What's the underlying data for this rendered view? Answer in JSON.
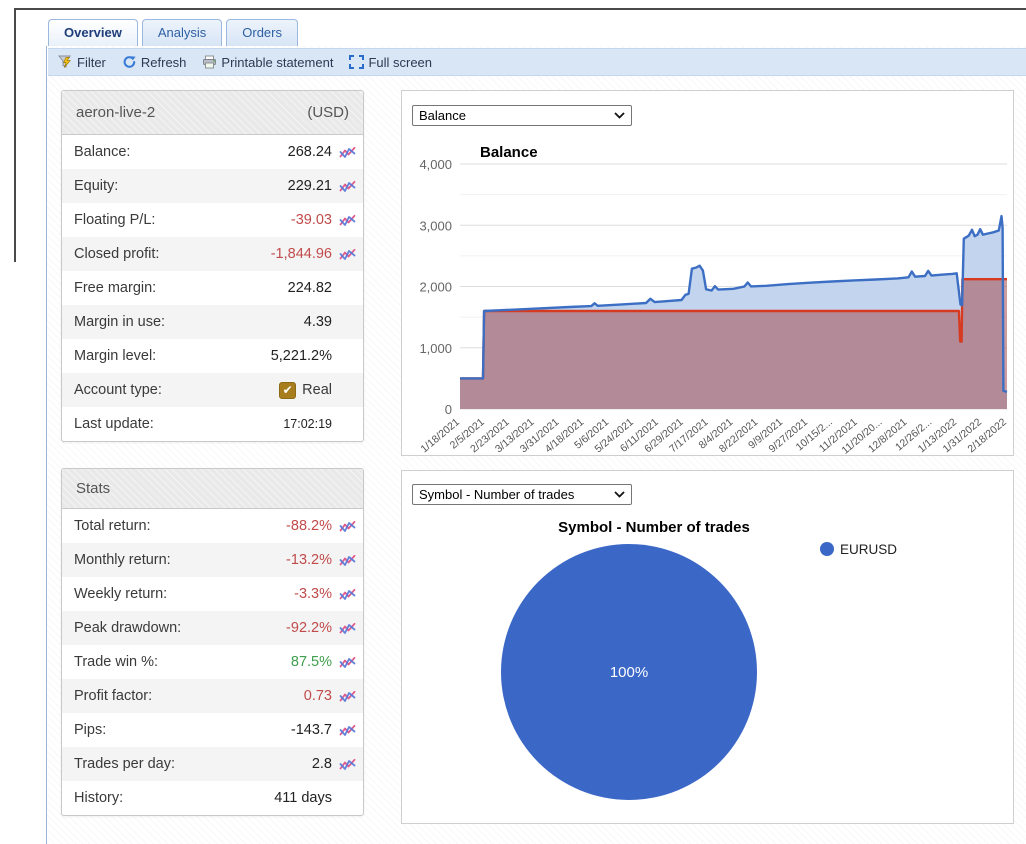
{
  "tabs": [
    {
      "label": "Overview",
      "active": true
    },
    {
      "label": "Analysis",
      "active": false
    },
    {
      "label": "Orders",
      "active": false
    }
  ],
  "toolbar": {
    "items": [
      {
        "label": "Filter",
        "icon": "filter-icon"
      },
      {
        "label": "Refresh",
        "icon": "refresh-icon"
      },
      {
        "label": "Printable statement",
        "icon": "printer-icon"
      },
      {
        "label": "Full screen",
        "icon": "fullscreen-icon"
      }
    ]
  },
  "account_panel": {
    "title": "aeron-live-2",
    "currency": "(USD)",
    "rows": [
      {
        "label": "Balance:",
        "value": "268.24",
        "tone": "neutral",
        "chart_icon": true
      },
      {
        "label": "Equity:",
        "value": "229.21",
        "tone": "neutral",
        "chart_icon": true
      },
      {
        "label": "Floating P/L:",
        "value": "-39.03",
        "tone": "negative",
        "chart_icon": true
      },
      {
        "label": "Closed profit:",
        "value": "-1,844.96",
        "tone": "negative",
        "chart_icon": true
      },
      {
        "label": "Free margin:",
        "value": "224.82",
        "tone": "neutral",
        "chart_icon": false
      },
      {
        "label": "Margin in use:",
        "value": "4.39",
        "tone": "neutral",
        "chart_icon": false
      },
      {
        "label": "Margin level:",
        "value": "5,221.2%",
        "tone": "neutral",
        "chart_icon": false
      },
      {
        "label": "Account type:",
        "value": "Real",
        "tone": "neutral",
        "chart_icon": false,
        "checkbox": true,
        "checkbox_color": "#A87D1E",
        "check_glyph": "✔"
      },
      {
        "label": "Last update:",
        "value": "17:02:19",
        "tone": "neutral",
        "chart_icon": false
      }
    ]
  },
  "stats_panel": {
    "title": "Stats",
    "rows": [
      {
        "label": "Total return:",
        "value": "-88.2%",
        "tone": "negative",
        "chart_icon": true
      },
      {
        "label": "Monthly return:",
        "value": "-13.2%",
        "tone": "negative",
        "chart_icon": true
      },
      {
        "label": "Weekly return:",
        "value": "-3.3%",
        "tone": "negative",
        "chart_icon": true
      },
      {
        "label": "Peak drawdown:",
        "value": "-92.2%",
        "tone": "negative",
        "chart_icon": true
      },
      {
        "label": "Trade win %:",
        "value": "87.5%",
        "tone": "positive",
        "chart_icon": true
      },
      {
        "label": "Profit factor:",
        "value": "0.73",
        "tone": "negative",
        "chart_icon": true
      },
      {
        "label": "Pips:",
        "value": "-143.7",
        "tone": "neutral",
        "chart_icon": true
      },
      {
        "label": "Trades per day:",
        "value": "2.8",
        "tone": "neutral",
        "chart_icon": true
      },
      {
        "label": "History:",
        "value": "411 days",
        "tone": "neutral",
        "chart_icon": false
      }
    ]
  },
  "balance_chart": {
    "select_value": "Balance",
    "chart_data": {
      "type": "area",
      "title": "Balance",
      "x_unit": "fraction_of_date_range",
      "x_labels": [
        "1/18/2021",
        "2/5/2021",
        "2/23/2021",
        "3/13/2021",
        "3/31/2021",
        "4/18/2021",
        "5/6/2021",
        "5/24/2021",
        "6/11/2021",
        "6/29/2021",
        "7/17/2021",
        "8/4/2021",
        "8/22/2021",
        "9/9/2021",
        "9/27/2021",
        "10/15/2...",
        "11/2/2021",
        "11/20/20...",
        "12/8/2021",
        "12/26/2...",
        "1/13/2022",
        "1/31/2022",
        "2/18/2022"
      ],
      "ylim": [
        0,
        4000
      ],
      "ytick_step": 500,
      "ylabel_ticks": [
        "0",
        "1,000",
        "2,000",
        "3,000",
        "4,000"
      ],
      "grid": true,
      "series": [
        {
          "name": "Balance",
          "color": "#3C6FC4",
          "fill": "#C3D5EE",
          "points": [
            [
              0.0,
              500
            ],
            [
              0.042,
              500
            ],
            [
              0.044,
              1600
            ],
            [
              0.08,
              1615
            ],
            [
              0.14,
              1640
            ],
            [
              0.2,
              1665
            ],
            [
              0.24,
              1680
            ],
            [
              0.246,
              1725
            ],
            [
              0.252,
              1685
            ],
            [
              0.3,
              1710
            ],
            [
              0.34,
              1730
            ],
            [
              0.348,
              1800
            ],
            [
              0.356,
              1745
            ],
            [
              0.38,
              1762
            ],
            [
              0.405,
              1780
            ],
            [
              0.412,
              1865
            ],
            [
              0.418,
              1880
            ],
            [
              0.424,
              2290
            ],
            [
              0.432,
              2310
            ],
            [
              0.438,
              2340
            ],
            [
              0.444,
              2260
            ],
            [
              0.45,
              1955
            ],
            [
              0.46,
              1935
            ],
            [
              0.466,
              2005
            ],
            [
              0.472,
              1950
            ],
            [
              0.5,
              1962
            ],
            [
              0.52,
              2000
            ],
            [
              0.526,
              2065
            ],
            [
              0.532,
              2002
            ],
            [
              0.56,
              2012
            ],
            [
              0.6,
              2040
            ],
            [
              0.64,
              2062
            ],
            [
              0.68,
              2082
            ],
            [
              0.72,
              2100
            ],
            [
              0.76,
              2115
            ],
            [
              0.8,
              2132
            ],
            [
              0.82,
              2150
            ],
            [
              0.826,
              2245
            ],
            [
              0.832,
              2160
            ],
            [
              0.85,
              2172
            ],
            [
              0.856,
              2255
            ],
            [
              0.862,
              2178
            ],
            [
              0.88,
              2192
            ],
            [
              0.9,
              2205
            ],
            [
              0.908,
              2215
            ],
            [
              0.915,
              1705
            ],
            [
              0.918,
              1695
            ],
            [
              0.921,
              2780
            ],
            [
              0.93,
              2830
            ],
            [
              0.936,
              2925
            ],
            [
              0.941,
              2822
            ],
            [
              0.946,
              2845
            ],
            [
              0.951,
              2935
            ],
            [
              0.956,
              2845
            ],
            [
              0.965,
              2865
            ],
            [
              0.975,
              2885
            ],
            [
              0.985,
              2915
            ],
            [
              0.99,
              3150
            ],
            [
              0.992,
              2960
            ],
            [
              0.9935,
              295
            ],
            [
              1.0,
              280
            ]
          ]
        },
        {
          "name": "Deposit line",
          "color": "#D63A21",
          "fill": "rgba(166,77,82,0.55)",
          "points": [
            [
              0.0,
              500
            ],
            [
              0.042,
              500
            ],
            [
              0.044,
              1600
            ],
            [
              0.912,
              1600
            ],
            [
              0.9145,
              1100
            ],
            [
              0.917,
              1100
            ],
            [
              0.9185,
              2120
            ],
            [
              1.0,
              2120
            ]
          ]
        }
      ]
    }
  },
  "pie_chart": {
    "select_value": "Symbol - Number of trades",
    "chart_data": {
      "type": "pie",
      "title": "Symbol - Number of trades",
      "slices": [
        {
          "label": "EURUSD",
          "value_pct": 100,
          "color": "#3B68C7"
        }
      ],
      "center_label": "100%",
      "legend_position": "right"
    }
  }
}
